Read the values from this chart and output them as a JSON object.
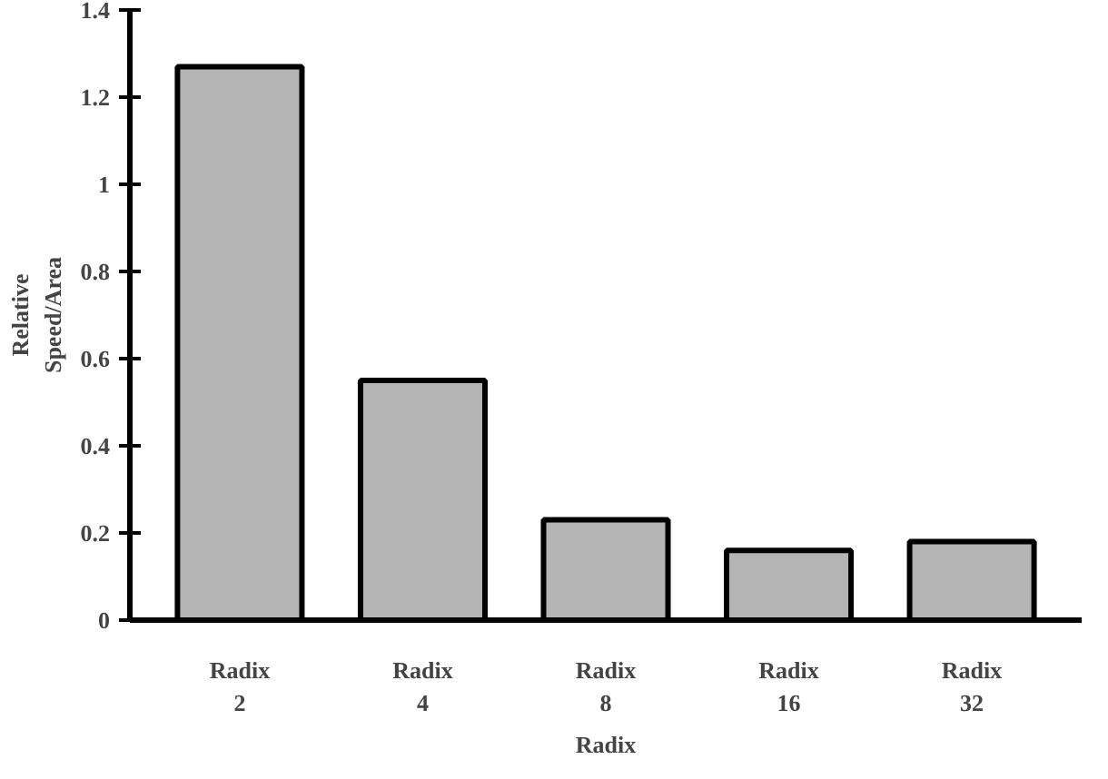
{
  "chart_data": {
    "type": "bar",
    "xlabel": "Radix",
    "ylabel": "Relative\nSpeed/Area",
    "categories": [
      "Radix\n2",
      "Radix\n4",
      "Radix\n8",
      "Radix\n16",
      "Radix\n32"
    ],
    "values": [
      1.27,
      0.55,
      0.23,
      0.16,
      0.18
    ],
    "color": "#b4b4b4",
    "ylim": [
      0,
      1.4
    ],
    "yticks": [
      0,
      0.2,
      0.4,
      0.6,
      0.8,
      1,
      1.2,
      1.4
    ],
    "grid": false
  }
}
